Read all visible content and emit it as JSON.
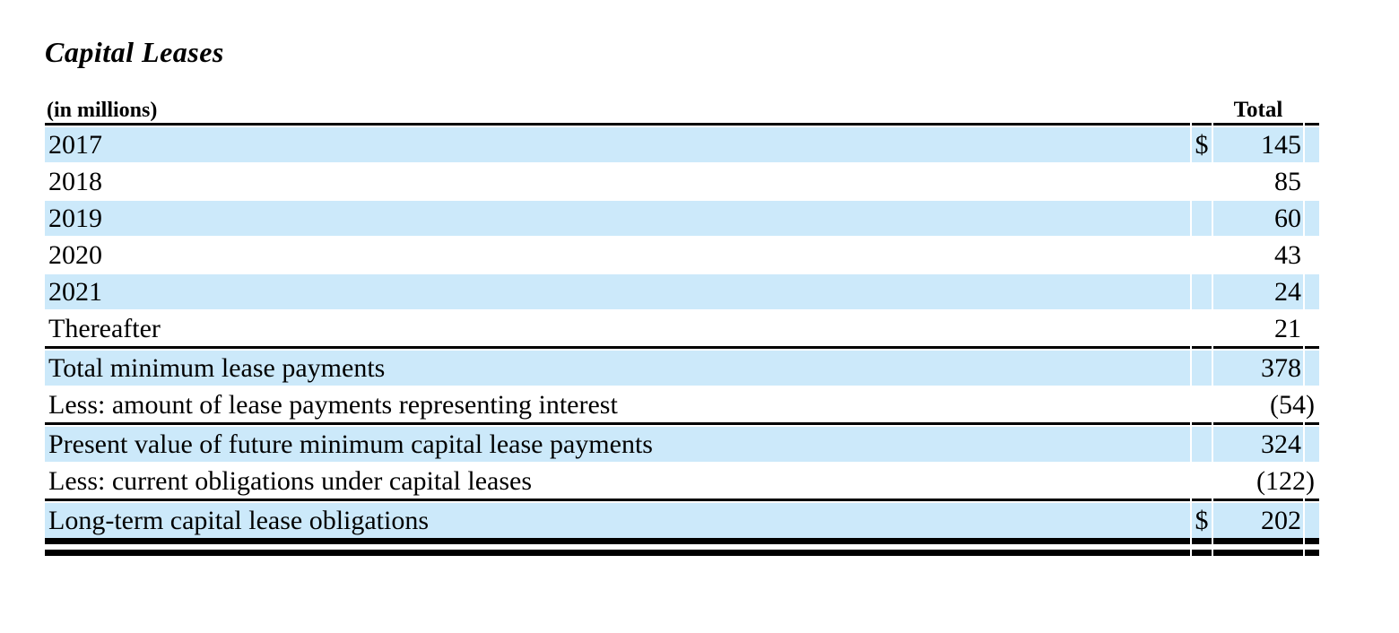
{
  "title": "Capital Leases",
  "table": {
    "unit_label": "(in millions)",
    "total_header": "Total",
    "colors": {
      "stripe": "#cce9fa",
      "rule": "#000000",
      "text": "#000000",
      "background": "#ffffff"
    },
    "rows": [
      {
        "label": "2017",
        "dollar": "$",
        "value": "145"
      },
      {
        "label": "2018",
        "dollar": "",
        "value": "85"
      },
      {
        "label": "2019",
        "dollar": "",
        "value": "60"
      },
      {
        "label": "2020",
        "dollar": "",
        "value": "43"
      },
      {
        "label": "2021",
        "dollar": "",
        "value": "24"
      },
      {
        "label": "Thereafter",
        "dollar": "",
        "value": "21"
      },
      {
        "label": "Total minimum lease payments",
        "dollar": "",
        "value": "378"
      },
      {
        "label": "Less: amount of lease payments representing interest",
        "dollar": "",
        "value": "(54)"
      },
      {
        "label": "Present value of future minimum capital lease payments",
        "dollar": "",
        "value": "324"
      },
      {
        "label": "Less: current obligations under capital leases",
        "dollar": "",
        "value": "(122)"
      },
      {
        "label": "Long-term capital lease obligations",
        "dollar": "$",
        "value": "202"
      }
    ]
  }
}
